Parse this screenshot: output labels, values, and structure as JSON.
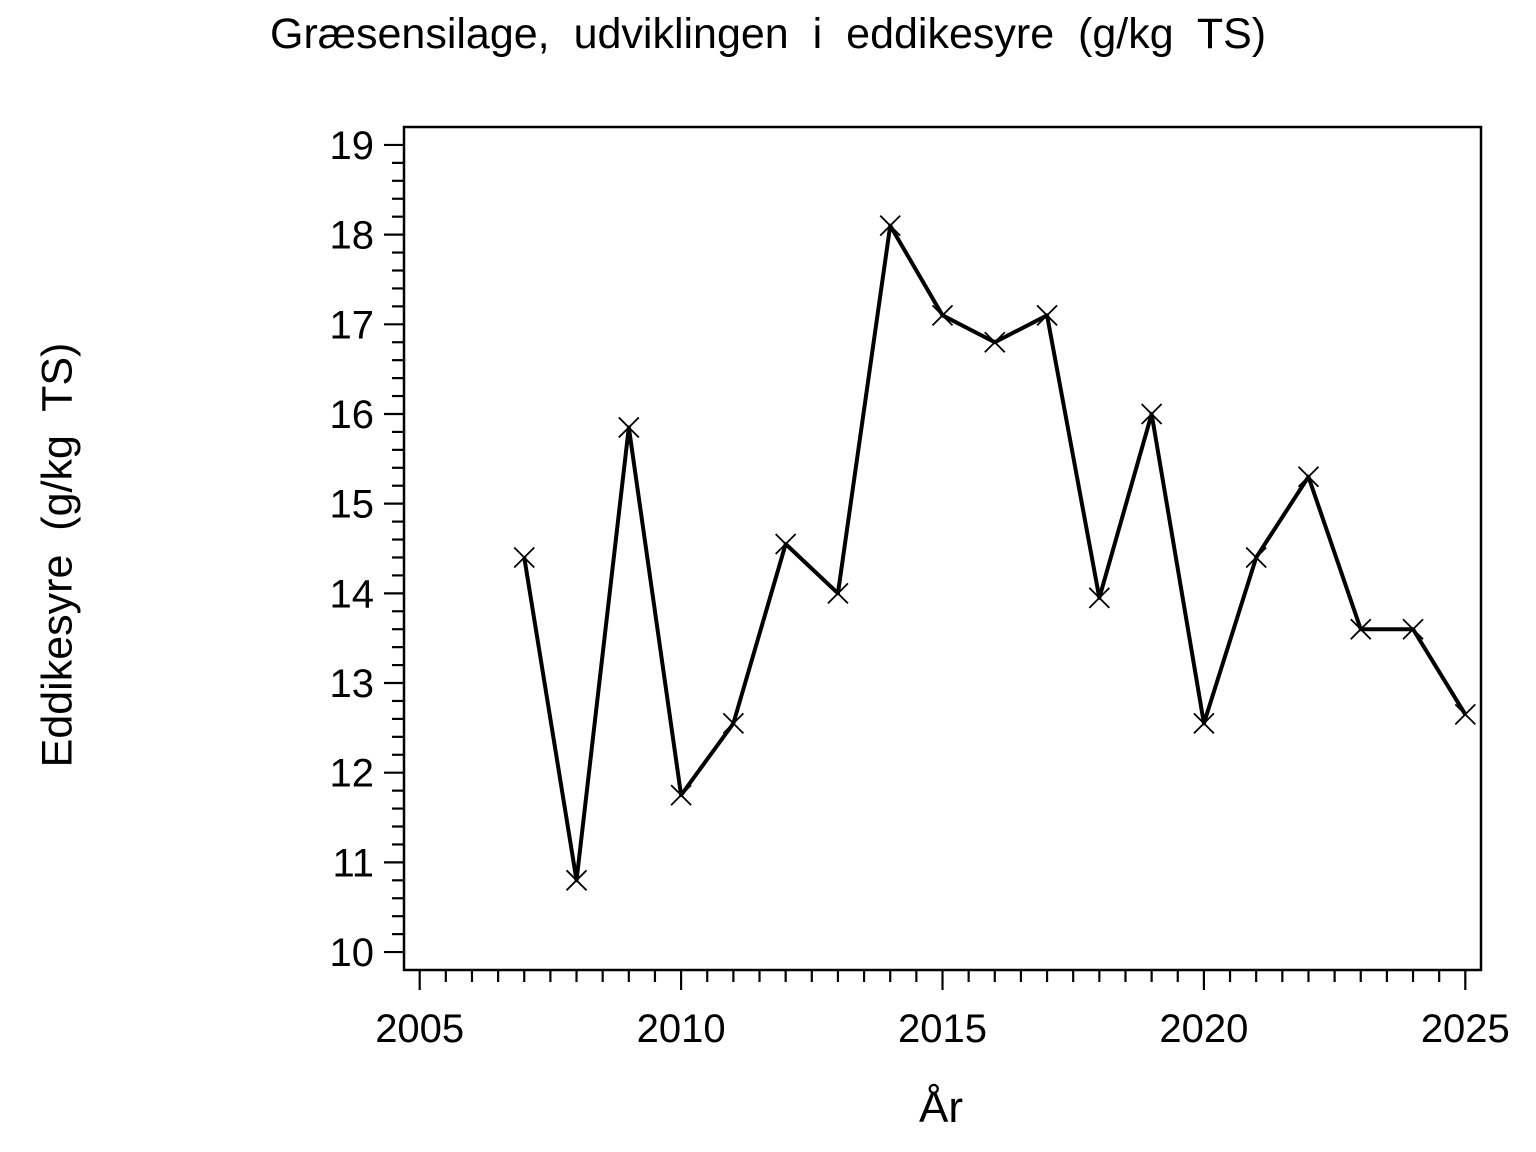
{
  "chart_data": {
    "type": "line",
    "title": "Græsensilage, udviklingen i eddikesyre (g/kg TS)",
    "xlabel": "År",
    "ylabel": "Eddikesyre (g/kg TS)",
    "x": [
      2007,
      2008,
      2009,
      2010,
      2011,
      2012,
      2013,
      2014,
      2015,
      2016,
      2017,
      2018,
      2019,
      2020,
      2021,
      2022,
      2023,
      2024,
      2025
    ],
    "values": [
      14.4,
      10.8,
      15.85,
      11.75,
      12.55,
      14.55,
      14.0,
      18.1,
      17.1,
      16.8,
      17.1,
      13.95,
      16.0,
      12.55,
      14.4,
      15.3,
      13.6,
      13.6,
      12.65
    ],
    "series_name": "Eddikesyre",
    "line_color": "#000000",
    "marker": "x",
    "x_ticks_major": [
      2005,
      2010,
      2015,
      2020,
      2025
    ],
    "x_tick_minor_step": 0.5,
    "x_tick_range": [
      2005,
      2025
    ],
    "y_ticks_major": [
      10,
      11,
      12,
      13,
      14,
      15,
      16,
      17,
      18,
      19
    ],
    "y_tick_minor_step": 0.2,
    "y_tick_range": [
      10,
      19
    ],
    "xlim": [
      2004.7,
      2025.3
    ],
    "ylim": [
      9.8,
      19.2
    ],
    "grid": "off",
    "legend": "none",
    "frame": "box"
  }
}
